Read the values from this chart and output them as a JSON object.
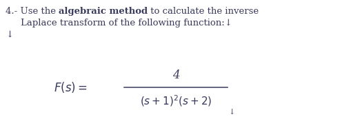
{
  "bg_color": "#ffffff",
  "text_color": "#3a3a5c",
  "fig_width": 5.09,
  "fig_height": 1.73,
  "dpi": 100,
  "line1_pre_bold": "4.- Use the ",
  "line1_bold": "algebraic method",
  "line1_post_bold": " to calculate the inverse",
  "line2": "Laplace transform of the following function:↓",
  "line3_arrow": "↓",
  "fs_label": "‘F(s) =",
  "numerator": "4",
  "denominator": "$(s + 1)^{2}(s + 2)$",
  "end_arrow": "↓",
  "text_fontsize": 9.5,
  "formula_fontsize": 12.0,
  "denom_fontsize": 11.0
}
